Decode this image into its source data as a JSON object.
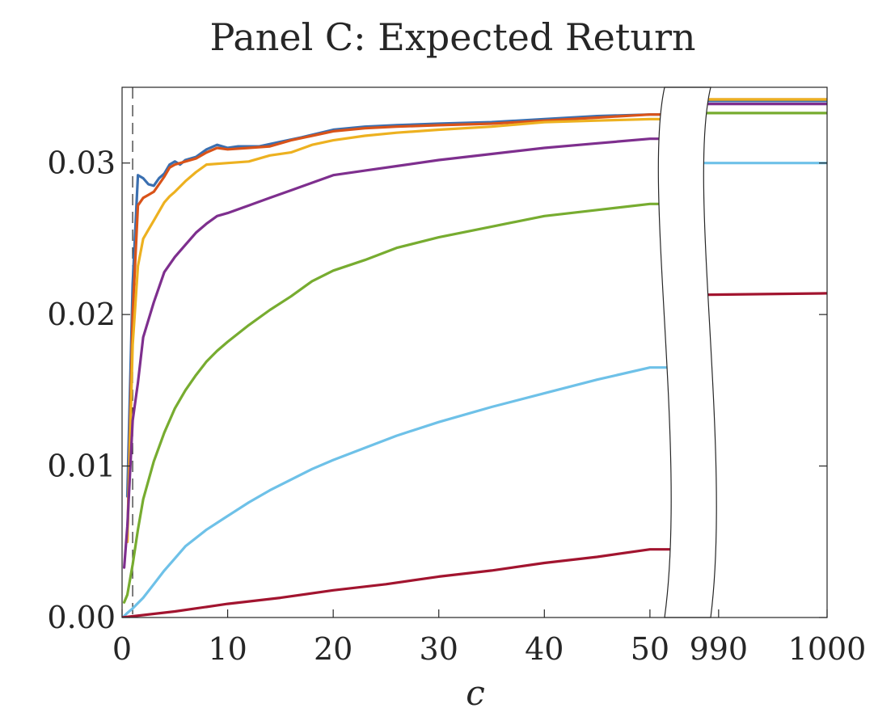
{
  "chart_data": {
    "type": "line",
    "title": "Panel C: Expected Return",
    "xlabel": "c",
    "ylabel": "",
    "x_segments": [
      {
        "xlim": [
          0,
          52
        ]
      },
      {
        "xlim": [
          988,
          1000
        ]
      }
    ],
    "xticks": [
      {
        "value": 0,
        "label": "0"
      },
      {
        "value": 10,
        "label": "10"
      },
      {
        "value": 20,
        "label": "20"
      },
      {
        "value": 30,
        "label": "30"
      },
      {
        "value": 40,
        "label": "40"
      },
      {
        "value": 50,
        "label": "50"
      },
      {
        "value": 990,
        "label": "990"
      },
      {
        "value": 1000,
        "label": "1000"
      }
    ],
    "ylim": [
      0,
      0.035
    ],
    "yticks": [
      {
        "value": 0,
        "label": "0.00"
      },
      {
        "value": 0.01,
        "label": "0.01"
      },
      {
        "value": 0.02,
        "label": "0.02"
      },
      {
        "value": 0.03,
        "label": "0.03"
      }
    ],
    "reference_line": {
      "x": 1,
      "style": "dashed"
    },
    "grid": false,
    "legend": "none",
    "series": [
      {
        "color": "#3a6fb0",
        "points": [
          [
            0.5,
            0.008
          ],
          [
            1,
            0.022
          ],
          [
            1.5,
            0.0292
          ],
          [
            2,
            0.029
          ],
          [
            2.5,
            0.0286
          ],
          [
            3,
            0.0285
          ],
          [
            3.5,
            0.029
          ],
          [
            4,
            0.0293
          ],
          [
            4.5,
            0.0299
          ],
          [
            5,
            0.0301
          ],
          [
            5.5,
            0.0299
          ],
          [
            6,
            0.0302
          ],
          [
            7,
            0.0304
          ],
          [
            8,
            0.0309
          ],
          [
            9,
            0.0312
          ],
          [
            10,
            0.031
          ],
          [
            11,
            0.0311
          ],
          [
            13,
            0.0311
          ],
          [
            15,
            0.0314
          ],
          [
            17,
            0.0317
          ],
          [
            20,
            0.0322
          ],
          [
            23,
            0.0324
          ],
          [
            26,
            0.0325
          ],
          [
            30,
            0.0326
          ],
          [
            35,
            0.0327
          ],
          [
            40,
            0.0329
          ],
          [
            45,
            0.0331
          ],
          [
            50,
            0.0332
          ],
          [
            988,
            0.0341
          ],
          [
            1000,
            0.0341
          ]
        ]
      },
      {
        "color": "#d95319",
        "points": [
          [
            0.5,
            0.005
          ],
          [
            1,
            0.02
          ],
          [
            1.5,
            0.0272
          ],
          [
            2,
            0.0277
          ],
          [
            2.5,
            0.0279
          ],
          [
            3,
            0.0281
          ],
          [
            3.5,
            0.0286
          ],
          [
            4,
            0.0291
          ],
          [
            4.5,
            0.0297
          ],
          [
            5,
            0.0299
          ],
          [
            6,
            0.0301
          ],
          [
            7,
            0.0303
          ],
          [
            8,
            0.0307
          ],
          [
            9,
            0.031
          ],
          [
            10,
            0.0309
          ],
          [
            12,
            0.031
          ],
          [
            14,
            0.0311
          ],
          [
            16,
            0.0315
          ],
          [
            18,
            0.0318
          ],
          [
            20,
            0.0321
          ],
          [
            23,
            0.0323
          ],
          [
            26,
            0.0324
          ],
          [
            30,
            0.0325
          ],
          [
            35,
            0.0326
          ],
          [
            40,
            0.0328
          ],
          [
            45,
            0.033
          ],
          [
            50,
            0.0332
          ],
          [
            988,
            0.0342
          ],
          [
            1000,
            0.0342
          ]
        ]
      },
      {
        "color": "#edb120",
        "points": [
          [
            0.5,
            0.005
          ],
          [
            1,
            0.018
          ],
          [
            1.5,
            0.0232
          ],
          [
            2,
            0.025
          ],
          [
            2.5,
            0.0256
          ],
          [
            3,
            0.0262
          ],
          [
            3.5,
            0.0268
          ],
          [
            4,
            0.0274
          ],
          [
            4.5,
            0.0278
          ],
          [
            5,
            0.0281
          ],
          [
            6,
            0.0288
          ],
          [
            7,
            0.0294
          ],
          [
            8,
            0.0299
          ],
          [
            10,
            0.03
          ],
          [
            12,
            0.0301
          ],
          [
            14,
            0.0305
          ],
          [
            16,
            0.0307
          ],
          [
            18,
            0.0312
          ],
          [
            20,
            0.0315
          ],
          [
            23,
            0.0318
          ],
          [
            26,
            0.032
          ],
          [
            30,
            0.0322
          ],
          [
            35,
            0.0324
          ],
          [
            40,
            0.0327
          ],
          [
            45,
            0.0328
          ],
          [
            50,
            0.0329
          ],
          [
            988,
            0.0342
          ],
          [
            1000,
            0.0342
          ]
        ]
      },
      {
        "color": "#7e2f8e",
        "points": [
          [
            0.2,
            0.0033
          ],
          [
            0.5,
            0.006
          ],
          [
            1,
            0.013
          ],
          [
            1.5,
            0.0155
          ],
          [
            2,
            0.0185
          ],
          [
            3,
            0.0208
          ],
          [
            4,
            0.0228
          ],
          [
            5,
            0.0238
          ],
          [
            6,
            0.0246
          ],
          [
            7,
            0.0254
          ],
          [
            8,
            0.026
          ],
          [
            9,
            0.0265
          ],
          [
            10,
            0.0267
          ],
          [
            12,
            0.0272
          ],
          [
            14,
            0.0277
          ],
          [
            16,
            0.0282
          ],
          [
            18,
            0.0287
          ],
          [
            20,
            0.0292
          ],
          [
            23,
            0.0295
          ],
          [
            26,
            0.0298
          ],
          [
            30,
            0.0302
          ],
          [
            35,
            0.0306
          ],
          [
            40,
            0.031
          ],
          [
            45,
            0.0313
          ],
          [
            50,
            0.0316
          ],
          [
            988,
            0.0339
          ],
          [
            1000,
            0.0339
          ]
        ]
      },
      {
        "color": "#77ac30",
        "points": [
          [
            0.2,
            0.001
          ],
          [
            0.5,
            0.0015
          ],
          [
            1,
            0.0035
          ],
          [
            1.5,
            0.0058
          ],
          [
            2,
            0.0078
          ],
          [
            3,
            0.0103
          ],
          [
            4,
            0.0122
          ],
          [
            5,
            0.0138
          ],
          [
            6,
            0.015
          ],
          [
            7,
            0.016
          ],
          [
            8,
            0.0169
          ],
          [
            9,
            0.0176
          ],
          [
            10,
            0.0182
          ],
          [
            12,
            0.0193
          ],
          [
            14,
            0.0203
          ],
          [
            16,
            0.0212
          ],
          [
            18,
            0.0222
          ],
          [
            20,
            0.0229
          ],
          [
            23,
            0.0236
          ],
          [
            26,
            0.0244
          ],
          [
            30,
            0.0251
          ],
          [
            35,
            0.0258
          ],
          [
            40,
            0.0265
          ],
          [
            45,
            0.0269
          ],
          [
            50,
            0.0273
          ],
          [
            988,
            0.0333
          ],
          [
            1000,
            0.0333
          ]
        ]
      },
      {
        "color": "#6ec1e8",
        "points": [
          [
            0.2,
            0.0001
          ],
          [
            0.5,
            0.0003
          ],
          [
            1,
            0.0006
          ],
          [
            2,
            0.0013
          ],
          [
            3,
            0.0022
          ],
          [
            4,
            0.0031
          ],
          [
            5,
            0.0039
          ],
          [
            6,
            0.0047
          ],
          [
            8,
            0.0058
          ],
          [
            10,
            0.0067
          ],
          [
            12,
            0.0076
          ],
          [
            14,
            0.0084
          ],
          [
            16,
            0.0091
          ],
          [
            18,
            0.0098
          ],
          [
            20,
            0.0104
          ],
          [
            23,
            0.0112
          ],
          [
            26,
            0.012
          ],
          [
            30,
            0.0129
          ],
          [
            35,
            0.0139
          ],
          [
            40,
            0.0148
          ],
          [
            45,
            0.0157
          ],
          [
            50,
            0.0165
          ],
          [
            988,
            0.03
          ],
          [
            1000,
            0.03
          ]
        ]
      },
      {
        "color": "#a2142f",
        "points": [
          [
            0,
            0
          ],
          [
            5,
            0.0004
          ],
          [
            10,
            0.0009
          ],
          [
            15,
            0.0013
          ],
          [
            20,
            0.0018
          ],
          [
            25,
            0.0022
          ],
          [
            30,
            0.0027
          ],
          [
            35,
            0.0031
          ],
          [
            40,
            0.0036
          ],
          [
            45,
            0.004
          ],
          [
            50,
            0.0045
          ],
          [
            988,
            0.0213
          ],
          [
            1000,
            0.0214
          ]
        ]
      }
    ]
  }
}
